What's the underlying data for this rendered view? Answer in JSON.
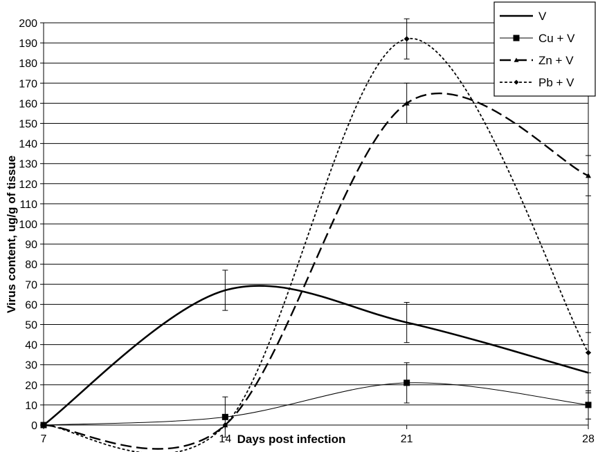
{
  "chart_data": {
    "type": "line",
    "title": "",
    "xlabel": "Days post infection",
    "ylabel": "Virus content, ug/g of tissue",
    "x": [
      7,
      14,
      21,
      28
    ],
    "x_ticks": [
      "7",
      "14",
      "21",
      "28"
    ],
    "xlim": [
      7,
      28
    ],
    "ylim": [
      0,
      200
    ],
    "y_ticks": [
      "0",
      "10",
      "20",
      "30",
      "40",
      "50",
      "60",
      "70",
      "80",
      "90",
      "100",
      "110",
      "120",
      "130",
      "140",
      "150",
      "160",
      "170",
      "180",
      "190",
      "200"
    ],
    "grid": "horizontal",
    "legend_position": "top-right",
    "series": [
      {
        "name": "V",
        "values": [
          0,
          67,
          51,
          26
        ],
        "errors": [
          0,
          10,
          10,
          10
        ],
        "style": "solid-thick",
        "marker": "none",
        "color": "#000000"
      },
      {
        "name": "Cu + V",
        "values": [
          0,
          4,
          21,
          10
        ],
        "errors": [
          0,
          10,
          10,
          7
        ],
        "style": "solid-thin",
        "marker": "square",
        "color": "#000000"
      },
      {
        "name": "Zn + V",
        "values": [
          0,
          0,
          160,
          124
        ],
        "errors": [
          0,
          0,
          10,
          10
        ],
        "style": "long-dash",
        "marker": "triangle",
        "color": "#000000"
      },
      {
        "name": "Pb + V",
        "values": [
          0,
          0,
          192,
          36
        ],
        "errors": [
          0,
          0,
          10,
          10
        ],
        "style": "short-dash",
        "marker": "diamond",
        "color": "#000000"
      }
    ]
  }
}
